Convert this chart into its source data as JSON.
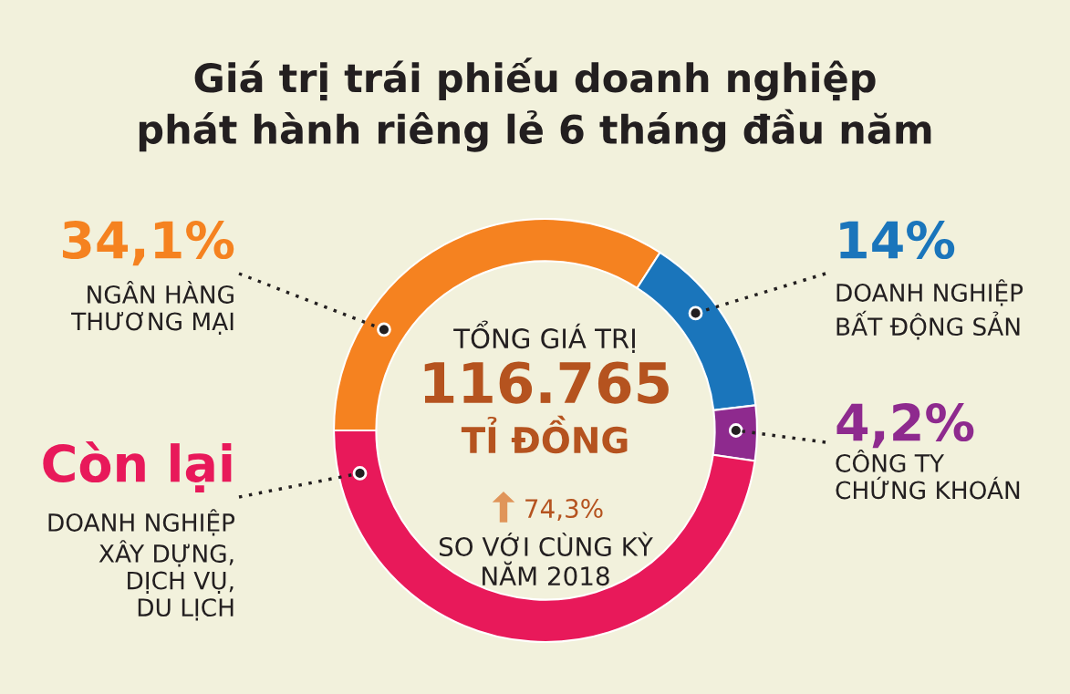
{
  "chart_data": {
    "type": "donut",
    "title": "Giá trị trái phiếu doanh nghiệp\nphát hành riêng lẻ 6 tháng đầu năm",
    "categories": [
      "NGÂN HÀNG\nTHƯƠNG MẠI",
      "DOANH NGHIỆP\nBẤT ĐỘNG SẢN",
      "CÔNG TY\nCHỨNG KHOÁN",
      "DOANH NGHIỆP\nXÂY DỰNG,\nDỊCH VỤ,\nDU LỊCH"
    ],
    "values": [
      34.1,
      14,
      4.2,
      47.7
    ],
    "colors": [
      "#f58220",
      "#1a75bb",
      "#8e2a8e",
      "#e8195a"
    ],
    "value_labels": [
      "34,1%",
      "14%",
      "4,2%",
      "Còn lại"
    ],
    "annotations": [
      "TỔNG GIÁ TRỊ",
      "116.765",
      "TỈ ĐỒNG",
      "74,3%",
      "SO VỚI CÙNG KỲ\nNĂM 2018"
    ]
  }
}
